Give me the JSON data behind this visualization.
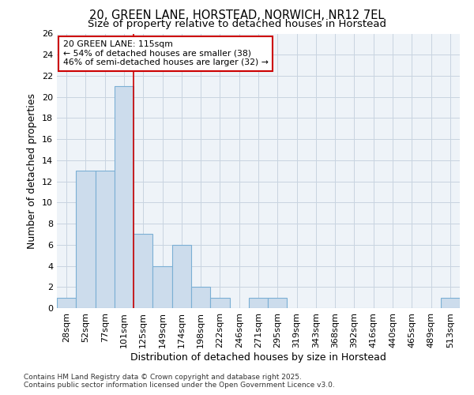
{
  "title1": "20, GREEN LANE, HORSTEAD, NORWICH, NR12 7EL",
  "title2": "Size of property relative to detached houses in Horstead",
  "xlabel": "Distribution of detached houses by size in Horstead",
  "ylabel": "Number of detached properties",
  "categories": [
    "28sqm",
    "52sqm",
    "77sqm",
    "101sqm",
    "125sqm",
    "149sqm",
    "174sqm",
    "198sqm",
    "222sqm",
    "246sqm",
    "271sqm",
    "295sqm",
    "319sqm",
    "343sqm",
    "368sqm",
    "392sqm",
    "416sqm",
    "440sqm",
    "465sqm",
    "489sqm",
    "513sqm"
  ],
  "values": [
    1,
    13,
    13,
    21,
    7,
    4,
    6,
    2,
    1,
    0,
    1,
    1,
    0,
    0,
    0,
    0,
    0,
    0,
    0,
    0,
    1
  ],
  "bar_color": "#ccdcec",
  "bar_edge_color": "#7bafd4",
  "vline_x": 3.5,
  "vline_color": "#cc0000",
  "annotation_text": "20 GREEN LANE: 115sqm\n← 54% of detached houses are smaller (38)\n46% of semi-detached houses are larger (32) →",
  "annotation_box_color": "#ffffff",
  "annotation_box_edge": "#cc0000",
  "ylim": [
    0,
    26
  ],
  "yticks": [
    0,
    2,
    4,
    6,
    8,
    10,
    12,
    14,
    16,
    18,
    20,
    22,
    24,
    26
  ],
  "grid_color": "#c8d4e0",
  "bg_color": "#eef3f8",
  "footer": "Contains HM Land Registry data © Crown copyright and database right 2025.\nContains public sector information licensed under the Open Government Licence v3.0.",
  "title_fontsize": 10.5,
  "subtitle_fontsize": 9.5,
  "axis_label_fontsize": 9,
  "tick_fontsize": 8,
  "footer_fontsize": 6.5
}
